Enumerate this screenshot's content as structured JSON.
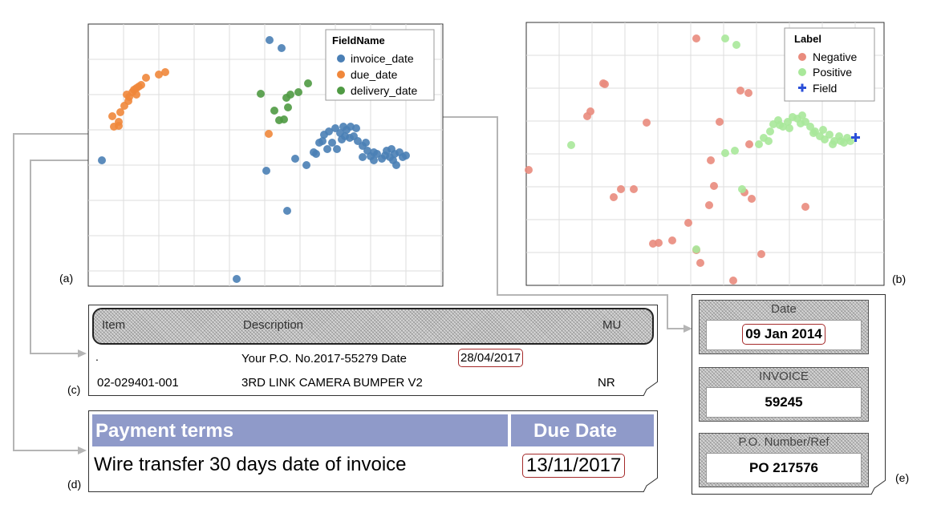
{
  "panel_labels": {
    "a": "(a)",
    "b": "(b)",
    "c": "(c)",
    "d": "(d)",
    "e": "(e)"
  },
  "chart_a": {
    "type": "scatter",
    "legend_title": "FieldName",
    "legend_position": "top-right",
    "grid": true,
    "series": [
      {
        "name": "invoice_date",
        "color": "#4a7fb5"
      },
      {
        "name": "due_date",
        "color": "#f0873b"
      },
      {
        "name": "delivery_date",
        "color": "#4f9a43"
      }
    ]
  },
  "chart_b": {
    "type": "scatter",
    "legend_title": "Label",
    "legend_position": "top-right",
    "grid": true,
    "series": [
      {
        "name": "Negative",
        "color": "#e98b7d"
      },
      {
        "name": "Positive",
        "color": "#a9e89a"
      },
      {
        "name": "Field",
        "color": "#2b4fd8",
        "marker": "plus"
      }
    ]
  },
  "doc_c": {
    "headers": [
      "Item",
      "Description",
      "MU"
    ],
    "row1_desc": "Your  P.O. No.2017-55279 Date",
    "row1_date": "28/04/2017",
    "row1_dot": ".",
    "row2": [
      "02-029401-001",
      "3RD LINK CAMERA BUMPER V2",
      "NR"
    ]
  },
  "doc_d": {
    "headers": [
      "Payment terms",
      "Due Date"
    ],
    "text": "Wire transfer 30 days date of invoice",
    "date": "13/11/2017"
  },
  "doc_e": {
    "blocks": [
      {
        "label": "Date",
        "value": "09 Jan 2014"
      },
      {
        "label": "INVOICE",
        "value": "59245"
      },
      {
        "label": "P.O. Number/Ref",
        "value": "PO 217576"
      }
    ]
  }
}
